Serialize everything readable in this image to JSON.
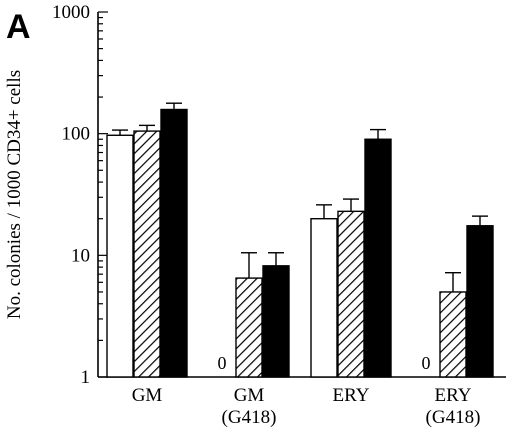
{
  "panel_label": "A",
  "chart_data": {
    "type": "bar",
    "ylabel": "No. colonies / 1000 CD34+ cells",
    "yscale": "log",
    "ylim": [
      1,
      1000
    ],
    "ytick_labels": [
      "1",
      "10",
      "100",
      "1000"
    ],
    "categories": [
      {
        "line1": "GM",
        "line2": ""
      },
      {
        "line1": "GM",
        "line2": "(G418)"
      },
      {
        "line1": "ERY",
        "line2": ""
      },
      {
        "line1": "ERY",
        "line2": "(G418)"
      }
    ],
    "series": [
      {
        "fill": "white",
        "values": [
          97,
          0,
          20,
          0
        ],
        "errors": [
          107,
          null,
          26,
          null
        ],
        "zero_labels": [
          "",
          "0",
          "",
          "0"
        ]
      },
      {
        "fill": "hatched",
        "values": [
          105,
          6.5,
          23,
          5
        ],
        "errors": [
          117,
          10.5,
          29,
          7.2
        ]
      },
      {
        "fill": "black",
        "values": [
          158,
          8.2,
          90,
          17.5
        ],
        "errors": [
          178,
          10.5,
          108,
          21
        ]
      }
    ],
    "grid": false,
    "legend": "none"
  }
}
